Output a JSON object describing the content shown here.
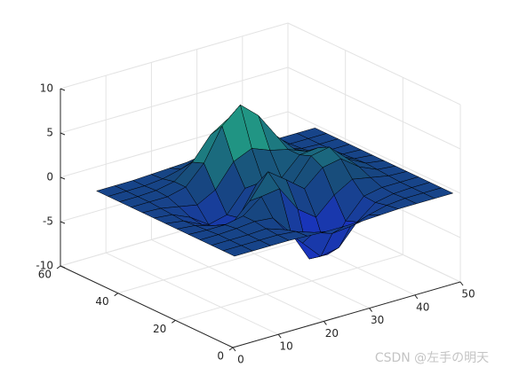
{
  "chart_data": {
    "type": "surface",
    "x": [
      1,
      5,
      9,
      13,
      17,
      21,
      25,
      29,
      33,
      37,
      41,
      45,
      49
    ],
    "y": [
      1,
      5,
      9,
      13,
      17,
      21,
      25,
      29,
      33,
      37,
      41,
      45,
      49
    ],
    "z": [
      [
        0,
        0,
        0,
        0,
        -0.1,
        -0.2,
        -0.2,
        -0.2,
        -0.1,
        0,
        0,
        0,
        0
      ],
      [
        0,
        0,
        0,
        0,
        -0.2,
        -0.9,
        -1.6,
        -1.4,
        -0.7,
        -0.2,
        0,
        0,
        0
      ],
      [
        0,
        0,
        0,
        0.1,
        -0.6,
        -2.7,
        -4.8,
        -4.4,
        -2.1,
        -0.5,
        -0.1,
        0,
        0
      ],
      [
        0,
        0,
        0.1,
        0.3,
        0.1,
        -2.2,
        -5.7,
        -5.8,
        -2.6,
        -0.4,
        0,
        0,
        0
      ],
      [
        0,
        -0.1,
        -0.1,
        0.3,
        1.9,
        2.2,
        -0.7,
        -2.2,
        -0.3,
        0.9,
        0.5,
        0.1,
        0
      ],
      [
        0,
        -0.2,
        -0.8,
        -1.2,
        0.8,
        3.5,
        2.0,
        0.4,
        2.2,
        2.6,
        1.1,
        0.2,
        0
      ],
      [
        0,
        -0.3,
        -1.3,
        -2.8,
        -1.7,
        1.5,
        1.0,
        0.4,
        2.9,
        3.3,
        1.4,
        0.3,
        0
      ],
      [
        0,
        -0.2,
        -1.1,
        -2.5,
        -2.0,
        0.4,
        0.5,
        0.4,
        2.4,
        2.6,
        1.1,
        0.2,
        0
      ],
      [
        0,
        -0.1,
        -0.5,
        -0.9,
        0.2,
        2.8,
        3.7,
        2.9,
        2.4,
        1.6,
        0.6,
        0.1,
        0
      ],
      [
        0,
        0,
        0,
        0.5,
        2.6,
        6.2,
        8.0,
        6.2,
        3.3,
        1.2,
        0.3,
        0,
        0
      ],
      [
        0,
        0,
        0.1,
        0.5,
        2.1,
        4.6,
        5.9,
        4.6,
        2.2,
        0.7,
        0.1,
        0,
        0
      ],
      [
        0,
        0,
        0,
        0.2,
        0.7,
        1.5,
        1.9,
        1.5,
        0.7,
        0.2,
        0,
        0,
        0
      ],
      [
        0,
        0,
        0,
        0.1,
        0.2,
        0.3,
        0.3,
        0.3,
        0.2,
        0.1,
        0,
        0,
        0
      ]
    ],
    "xlim": [
      0,
      50
    ],
    "ylim": [
      0,
      60
    ],
    "zlim": [
      -10,
      10
    ],
    "xticks": [
      0,
      10,
      20,
      30,
      40,
      50
    ],
    "yticks": [
      0,
      20,
      40,
      60
    ],
    "zticks": [
      -10,
      -5,
      0,
      5,
      10
    ],
    "grid": true,
    "colormap": [
      "#1a2cd6",
      "#17487a",
      "#27c98a"
    ],
    "edge_color": "#000000",
    "watermark": "CSDN @左手の明天"
  }
}
